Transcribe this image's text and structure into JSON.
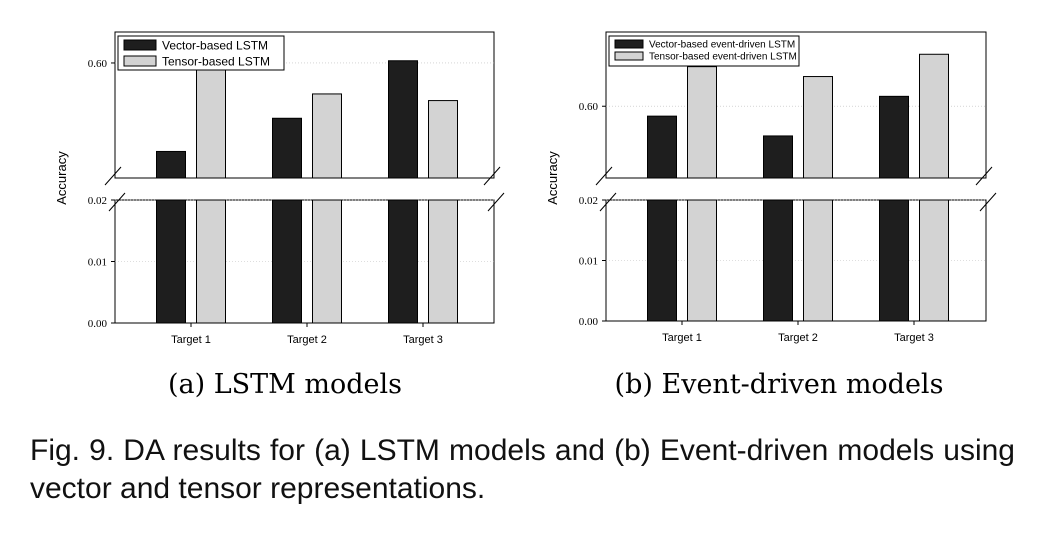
{
  "chart_data": [
    {
      "type": "bar",
      "title": "",
      "xlabel": "",
      "ylabel": "Accuracy",
      "categories": [
        "Target 1",
        "Target 2",
        "Target 3"
      ],
      "series": [
        {
          "name": "Vector-based LSTM",
          "color": "#1e1e1e",
          "values": [
            0.56,
            0.575,
            0.601
          ]
        },
        {
          "name": "Tensor-based LSTM",
          "color": "#d3d3d3",
          "values": [
            0.604,
            0.586,
            0.583
          ]
        }
      ],
      "axis_break": {
        "lower": [
          0,
          0.02
        ],
        "upper": [
          0.548,
          0.614
        ]
      },
      "yticks": [
        {
          "value": 0.0,
          "label": "0.00"
        },
        {
          "value": 0.01,
          "label": "0.01"
        },
        {
          "value": 0.02,
          "label": "0.02"
        },
        {
          "value": 0.6,
          "label": "0.60"
        }
      ],
      "grid": true,
      "legend_position": "top-left",
      "subcaption": "(a)  LSTM models"
    },
    {
      "type": "bar",
      "title": "",
      "xlabel": "",
      "ylabel": "Accuracy",
      "categories": [
        "Target 1",
        "Target 2",
        "Target 3"
      ],
      "series": [
        {
          "name": "Vector-based event-driven LSTM",
          "color": "#1e1e1e",
          "values": [
            0.596,
            0.588,
            0.604
          ]
        },
        {
          "name": "Tensor-based event-driven LSTM",
          "color": "#d3d3d3",
          "values": [
            0.616,
            0.612,
            0.621
          ]
        }
      ],
      "axis_break": {
        "lower": [
          0,
          0.02
        ],
        "upper": [
          0.571,
          0.63
        ]
      },
      "yticks": [
        {
          "value": 0.0,
          "label": "0.00"
        },
        {
          "value": 0.01,
          "label": "0.01"
        },
        {
          "value": 0.02,
          "label": "0.02"
        },
        {
          "value": 0.6,
          "label": "0.60"
        }
      ],
      "grid": true,
      "legend_position": "top-left",
      "subcaption": "(b)  Event-driven models"
    }
  ],
  "caption": "Fig. 9.  DA results for (a) LSTM models and (b) Event-driven models using vector and tensor representations."
}
